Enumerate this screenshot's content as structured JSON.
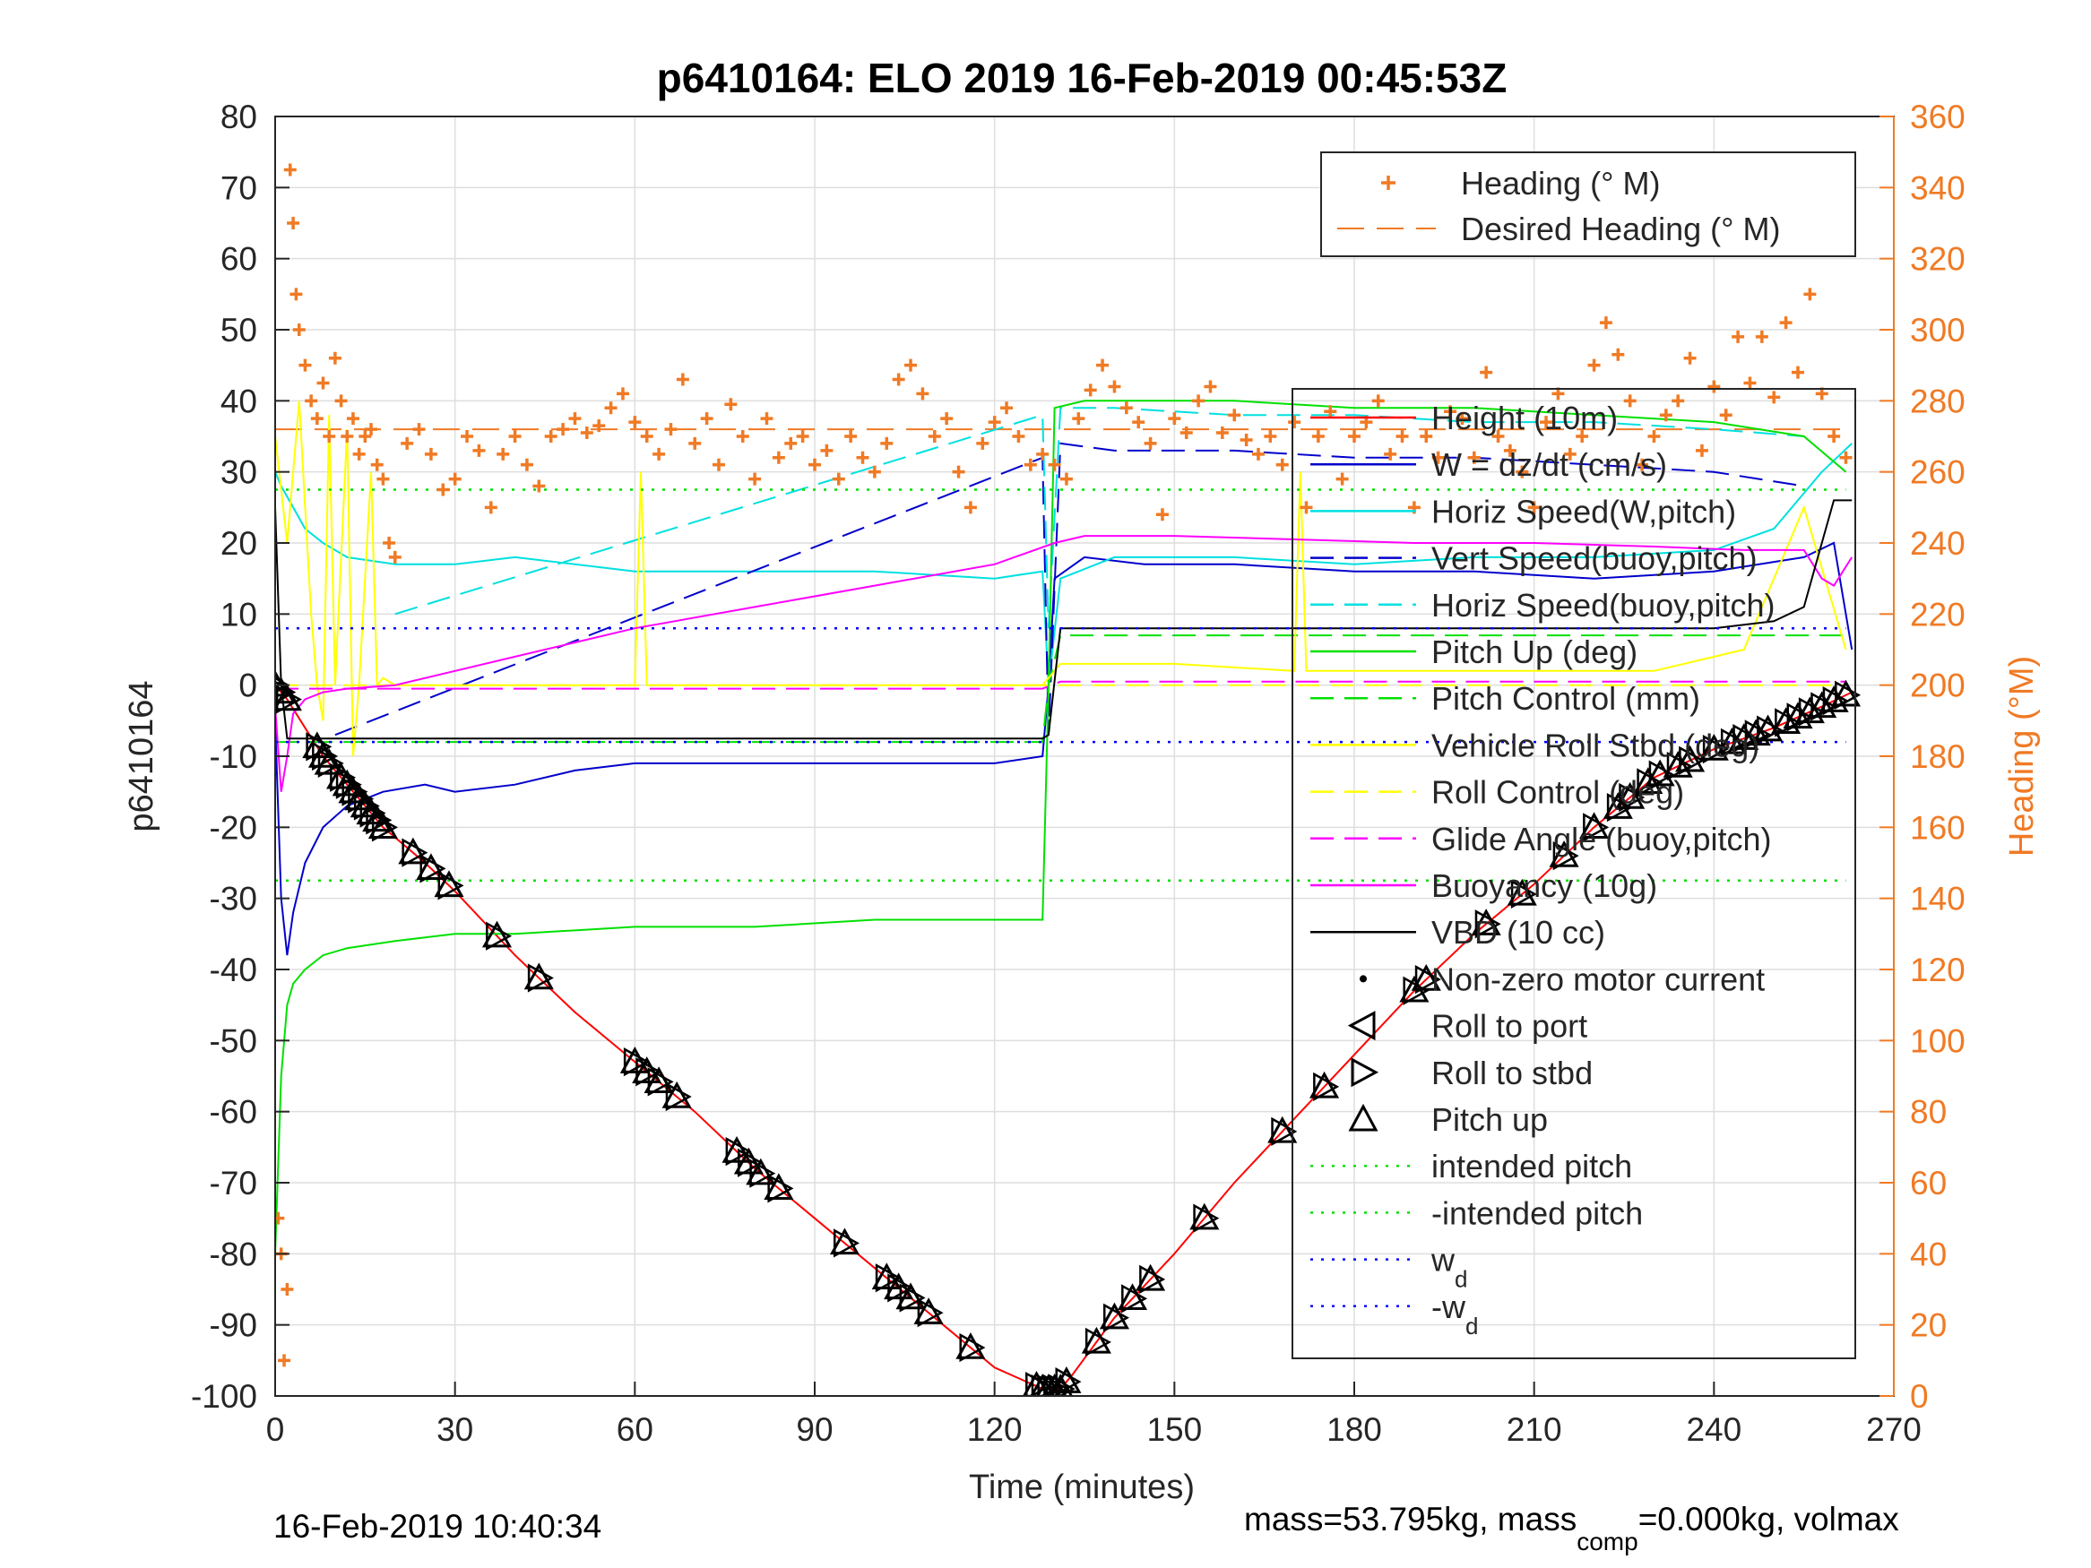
{
  "title": "p6410164: ELO 2019 16-Feb-2019 00:45:53Z",
  "footer_left": "16-Feb-2019 10:40:34",
  "footer_right": {
    "text1": "mass=53.795kg, mass",
    "sub1": "comp",
    "text2": "=0.000kg, volmax"
  },
  "chart_data": {
    "type": "line",
    "title": "p6410164: ELO 2019 16-Feb-2019 00:45:53Z",
    "xlabel": "Time (minutes)",
    "ylabel": "p6410164",
    "ylabel_right": "Heading (°M)",
    "xlim": [
      0,
      270
    ],
    "ylim": [
      -100,
      80
    ],
    "ylim_right": [
      0,
      360
    ],
    "xticks": [
      0,
      30,
      60,
      90,
      120,
      150,
      180,
      210,
      240,
      270
    ],
    "yticks": [
      -100,
      -90,
      -80,
      -70,
      -60,
      -50,
      -40,
      -30,
      -20,
      -10,
      0,
      10,
      20,
      30,
      40,
      50,
      60,
      70,
      80
    ],
    "yticks_right": [
      0,
      20,
      40,
      60,
      80,
      100,
      120,
      140,
      160,
      180,
      200,
      220,
      240,
      260,
      280,
      300,
      320,
      340,
      360
    ],
    "grid": true,
    "legend_top": [
      {
        "name": "Heading (° M)",
        "color": "#f07a24",
        "style": "marker-plus"
      },
      {
        "name": "Desired Heading (° M)",
        "color": "#f07a24",
        "style": "dashed"
      }
    ],
    "legend_main": [
      {
        "name": "Height (10m)",
        "color": "#ff0000",
        "style": "solid"
      },
      {
        "name": "W = dz/dt (cm/s)",
        "color": "#0000cc",
        "style": "solid"
      },
      {
        "name": "Horiz Speed(W,pitch)",
        "color": "#00e0e0",
        "style": "solid"
      },
      {
        "name": "Vert Speed(buoy,pitch)",
        "color": "#0000cc",
        "style": "dashed"
      },
      {
        "name": "Horiz Speed(buoy,pitch)",
        "color": "#00e0e0",
        "style": "dashed"
      },
      {
        "name": "Pitch Up (deg)",
        "color": "#00e000",
        "style": "solid"
      },
      {
        "name": "Pitch Control (mm)",
        "color": "#00e000",
        "style": "dashed"
      },
      {
        "name": "Vehicle Roll Stbd (deg)",
        "color": "#ffff00",
        "style": "solid"
      },
      {
        "name": "Roll Control (deg)",
        "color": "#ffff00",
        "style": "dashed"
      },
      {
        "name": "Glide Angle (buoy,pitch)",
        "color": "#ff00ff",
        "style": "dashed"
      },
      {
        "name": "Buoyancy (10g)",
        "color": "#ff00ff",
        "style": "solid"
      },
      {
        "name": "VBD (10 cc)",
        "color": "#000000",
        "style": "solid"
      },
      {
        "name": "Non-zero motor current",
        "color": "#000000",
        "style": "marker-dot"
      },
      {
        "name": "Roll to port",
        "color": "#000000",
        "style": "marker-tri-left"
      },
      {
        "name": "Roll to stbd",
        "color": "#000000",
        "style": "marker-tri-right"
      },
      {
        "name": "Pitch up",
        "color": "#000000",
        "style": "marker-tri-up"
      },
      {
        "name": "intended pitch",
        "color": "#00e000",
        "style": "dotted"
      },
      {
        "name": "-intended pitch",
        "color": "#00e000",
        "style": "dotted"
      },
      {
        "name": "w",
        "sub": "d",
        "color": "#0000ff",
        "style": "dotted"
      },
      {
        "name": "-w",
        "sub": "d",
        "color": "#0000ff",
        "style": "dotted"
      }
    ],
    "series": [
      {
        "key": "height",
        "color": "#ff0000",
        "dash": "",
        "x": [
          0,
          2,
          5,
          8,
          12,
          18,
          25,
          30,
          40,
          50,
          60,
          70,
          80,
          90,
          100,
          110,
          120,
          128,
          131,
          133,
          140,
          150,
          160,
          170,
          180,
          190,
          200,
          210,
          220,
          230,
          240,
          250,
          258,
          263
        ],
        "y": [
          0,
          -2,
          -6,
          -10,
          -14,
          -20,
          -25,
          -29,
          -38,
          -46,
          -53,
          -60,
          -68,
          -75,
          -82,
          -89,
          -96,
          -99,
          -99,
          -97,
          -89,
          -80,
          -70,
          -61,
          -52,
          -43,
          -35,
          -28,
          -20,
          -13,
          -9,
          -6,
          -3,
          -1
        ]
      },
      {
        "key": "w",
        "color": "#0000cc",
        "dash": "",
        "x": [
          0,
          1,
          2,
          3,
          5,
          8,
          12,
          18,
          25,
          30,
          40,
          50,
          60,
          80,
          100,
          120,
          128,
          129,
          130,
          135,
          145,
          160,
          180,
          200,
          220,
          240,
          255,
          260,
          263
        ],
        "y": [
          -5,
          -30,
          -38,
          -32,
          -25,
          -20,
          -17,
          -15,
          -14,
          -15,
          -14,
          -12,
          -11,
          -11,
          -11,
          -11,
          -10,
          0,
          15,
          18,
          17,
          17,
          16,
          16,
          15,
          16,
          18,
          20,
          5
        ]
      },
      {
        "key": "horiz_w",
        "color": "#00e0e0",
        "dash": "",
        "x": [
          0,
          1,
          3,
          5,
          8,
          12,
          20,
          30,
          40,
          60,
          80,
          100,
          120,
          128,
          129,
          131,
          140,
          160,
          180,
          200,
          220,
          240,
          250,
          258,
          263
        ],
        "y": [
          30,
          28,
          25,
          22,
          20,
          18,
          17,
          17,
          18,
          16,
          16,
          16,
          15,
          16,
          0,
          15,
          18,
          18,
          17,
          18,
          18,
          19,
          22,
          30,
          34
        ]
      },
      {
        "key": "vert_buoy",
        "color": "#0000cc",
        "dash": "26,12",
        "x": [
          10,
          128,
          129,
          131,
          140,
          160,
          180,
          200,
          220,
          240,
          255
        ],
        "y": [
          -7,
          32,
          -7,
          34,
          33,
          33,
          32,
          32,
          31,
          30,
          28
        ]
      },
      {
        "key": "horiz_buoy",
        "color": "#00e0e0",
        "dash": "26,12",
        "x": [
          20,
          128,
          129,
          131,
          140,
          160,
          180,
          200,
          220,
          240,
          255
        ],
        "y": [
          10,
          38,
          8,
          39,
          39,
          38,
          38,
          37,
          37,
          36,
          35
        ]
      },
      {
        "key": "pitch",
        "color": "#00e000",
        "dash": "",
        "x": [
          0,
          1,
          2,
          3,
          5,
          8,
          12,
          20,
          30,
          40,
          60,
          80,
          100,
          120,
          128,
          129,
          130,
          135,
          145,
          160,
          180,
          200,
          220,
          240,
          255,
          262
        ],
        "y": [
          -80,
          -55,
          -45,
          -42,
          -40,
          -38,
          -37,
          -36,
          -35,
          -35,
          -34,
          -34,
          -33,
          -33,
          -33,
          0,
          39,
          40,
          40,
          40,
          39,
          39,
          38,
          37,
          35,
          30
        ]
      },
      {
        "key": "pitch_ctrl",
        "color": "#00e000",
        "dash": "26,12",
        "x": [
          0,
          128,
          129,
          131,
          262
        ],
        "y": [
          -8,
          -8,
          0,
          7,
          7
        ]
      },
      {
        "key": "roll",
        "color": "#ffff00",
        "dash": "",
        "x": [
          0,
          2,
          4,
          6,
          7,
          8,
          9,
          10,
          12,
          13,
          14,
          16,
          17,
          18,
          20,
          30,
          40,
          50,
          60,
          61,
          62,
          80,
          100,
          120,
          128,
          129,
          131,
          135,
          150,
          170,
          171,
          172,
          190,
          210,
          230,
          245,
          250,
          255,
          262
        ],
        "y": [
          35,
          20,
          40,
          10,
          0,
          -5,
          38,
          0,
          36,
          -10,
          0,
          30,
          0,
          1,
          0,
          0,
          0,
          0,
          0,
          30,
          0,
          0,
          0,
          0,
          0,
          1,
          3,
          3,
          3,
          2,
          30,
          2,
          2,
          2,
          2,
          5,
          15,
          25,
          5
        ]
      },
      {
        "key": "roll_ctrl",
        "color": "#ffff00",
        "dash": "26,12",
        "x": [
          0,
          262
        ],
        "y": [
          0,
          0
        ]
      },
      {
        "key": "glide",
        "color": "#ff00ff",
        "dash": "26,12",
        "x": [
          0,
          128,
          131,
          262
        ],
        "y": [
          -0.5,
          -0.5,
          0.5,
          0.5
        ]
      },
      {
        "key": "buoyancy",
        "color": "#ff00ff",
        "dash": "",
        "x": [
          0,
          1,
          2,
          3,
          5,
          8,
          12,
          20,
          40,
          60,
          80,
          100,
          120,
          130,
          135,
          150,
          170,
          190,
          210,
          230,
          245,
          255,
          258,
          260,
          263
        ],
        "y": [
          -3,
          -15,
          -10,
          -4,
          -2,
          -1,
          -0.5,
          0,
          4,
          8,
          11,
          14,
          17,
          20,
          21,
          21,
          20.5,
          20,
          20,
          19.5,
          19,
          19,
          15,
          14,
          18
        ]
      },
      {
        "key": "vbd",
        "color": "#000000",
        "dash": "",
        "x": [
          0,
          1,
          2,
          128,
          129,
          131,
          132,
          180,
          210,
          240,
          250,
          255,
          258,
          260,
          263
        ],
        "y": [
          25,
          0,
          -7.5,
          -7.5,
          -7,
          8,
          8,
          8,
          8,
          8,
          9,
          11,
          20,
          26,
          26
        ]
      },
      {
        "key": "intended_pitch",
        "color": "#00e000",
        "dash": "3,9",
        "x": [
          0,
          262
        ],
        "y": [
          27.5,
          27.5
        ]
      },
      {
        "key": "neg_intended_pitch",
        "color": "#00e000",
        "dash": "3,9",
        "x": [
          0,
          262
        ],
        "y": [
          -27.5,
          -27.5
        ]
      },
      {
        "key": "wd",
        "color": "#0000ff",
        "dash": "3,9",
        "x": [
          0,
          262
        ],
        "y": [
          8,
          8
        ]
      },
      {
        "key": "neg_wd",
        "color": "#0000ff",
        "dash": "3,9",
        "x": [
          0,
          262
        ],
        "y": [
          -8,
          -8
        ]
      }
    ],
    "pitch_up_markers_x": [
      0,
      1,
      2,
      7,
      8,
      9,
      11,
      12,
      13,
      14,
      15,
      16,
      17,
      18,
      23,
      26,
      29,
      37,
      44,
      60,
      62,
      64,
      67,
      77,
      79,
      81,
      84,
      95,
      102,
      104,
      106,
      109,
      116,
      127,
      128,
      129,
      130,
      131,
      132,
      137,
      140,
      143,
      146,
      155,
      168,
      175,
      190,
      192,
      202,
      208,
      215,
      220,
      224,
      226,
      229,
      231,
      234,
      236,
      240,
      243,
      245,
      247,
      249,
      252,
      254,
      256,
      258,
      260,
      262
    ],
    "heading": {
      "desired": [
        {
          "x0": 0,
          "x1": 262,
          "y": 272
        }
      ],
      "x": [
        0.5,
        1,
        1.5,
        2,
        2.5,
        3,
        3.5,
        4,
        5,
        6,
        7,
        8,
        9,
        10,
        11,
        12,
        13,
        14,
        15,
        16,
        17,
        18,
        19,
        20,
        22,
        24,
        26,
        28,
        30,
        32,
        34,
        36,
        38,
        40,
        42,
        44,
        46,
        48,
        50,
        52,
        54,
        56,
        58,
        60,
        62,
        64,
        66,
        68,
        70,
        72,
        74,
        76,
        78,
        80,
        82,
        84,
        86,
        88,
        90,
        92,
        94,
        96,
        98,
        100,
        102,
        104,
        106,
        108,
        110,
        112,
        114,
        116,
        118,
        120,
        122,
        124,
        126,
        128,
        130,
        132,
        134,
        136,
        138,
        140,
        142,
        144,
        146,
        148,
        150,
        152,
        154,
        156,
        158,
        160,
        162,
        164,
        166,
        168,
        170,
        172,
        174,
        176,
        178,
        180,
        182,
        184,
        186,
        188,
        190,
        192,
        194,
        196,
        198,
        200,
        202,
        204,
        206,
        208,
        210,
        212,
        214,
        216,
        218,
        220,
        222,
        224,
        226,
        228,
        230,
        232,
        234,
        236,
        238,
        240,
        242,
        244,
        246,
        248,
        250,
        252,
        254,
        256,
        258,
        260,
        262
      ],
      "y": [
        50,
        40,
        10,
        30,
        345,
        330,
        310,
        300,
        290,
        280,
        275,
        285,
        270,
        292,
        280,
        270,
        275,
        265,
        270,
        272,
        262,
        258,
        240,
        236,
        268,
        272,
        265,
        255,
        258,
        270,
        266,
        250,
        265,
        270,
        262,
        256,
        270,
        272,
        275,
        271,
        273,
        278,
        282,
        274,
        270,
        265,
        272,
        286,
        268,
        275,
        262,
        279,
        270,
        258,
        275,
        264,
        268,
        270,
        262,
        266,
        258,
        270,
        264,
        260,
        268,
        286,
        290,
        282,
        270,
        275,
        260,
        250,
        268,
        274,
        278,
        270,
        262,
        265,
        262,
        258,
        275,
        283,
        290,
        284,
        278,
        274,
        268,
        248,
        275,
        271,
        280,
        284,
        271,
        276,
        269,
        265,
        270,
        262,
        274,
        250,
        270,
        277,
        258,
        270,
        274,
        280,
        265,
        270,
        250,
        270,
        264,
        277,
        275,
        264,
        288,
        270,
        266,
        260,
        250,
        274,
        282,
        265,
        270,
        290,
        302,
        293,
        280,
        262,
        270,
        276,
        280,
        292,
        266,
        284,
        276,
        298,
        285,
        298,
        281,
        302,
        288,
        310,
        282,
        270,
        264
      ]
    }
  }
}
